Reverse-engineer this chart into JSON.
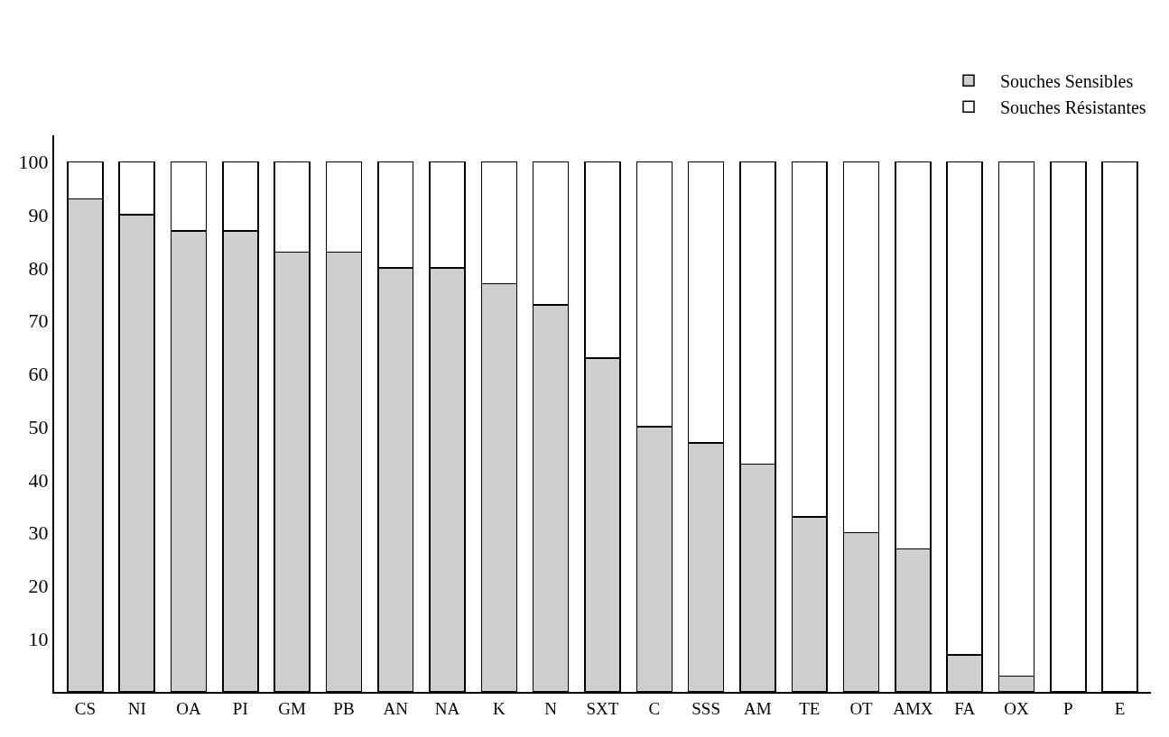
{
  "chart_data": {
    "type": "bar",
    "stacked": true,
    "categories": [
      "CS",
      "NI",
      "OA",
      "PI",
      "GM",
      "PB",
      "AN",
      "NA",
      "K",
      "N",
      "SXT",
      "C",
      "SSS",
      "AM",
      "TE",
      "OT",
      "AMX",
      "FA",
      "OX",
      "P",
      "E"
    ],
    "series": [
      {
        "name": "Souches Sensibles",
        "color": "#cfcfcf",
        "values": [
          93,
          90,
          87,
          87,
          83,
          83,
          80,
          80,
          77,
          73,
          63,
          50,
          47,
          43,
          33,
          30,
          27,
          7,
          3,
          0,
          0
        ]
      },
      {
        "name": "Souches Résistantes",
        "color": "#ffffff",
        "values": [
          7,
          10,
          13,
          13,
          17,
          17,
          20,
          20,
          23,
          27,
          37,
          50,
          53,
          57,
          67,
          70,
          73,
          93,
          97,
          100,
          100
        ]
      }
    ],
    "ylim": [
      0,
      105
    ],
    "yticks": [
      10,
      20,
      30,
      40,
      50,
      60,
      70,
      80,
      90,
      100
    ],
    "legend": "top right"
  }
}
